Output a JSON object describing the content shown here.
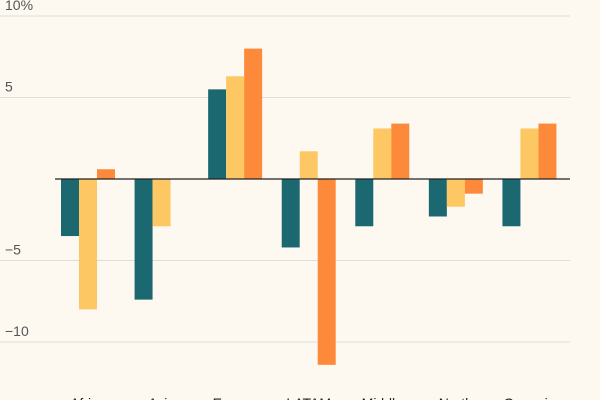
{
  "chart_data": {
    "type": "bar",
    "title": "",
    "xlabel": "",
    "ylabel": "",
    "categories": [
      "Africa",
      "Asia",
      "Europe",
      "LATAM",
      "Middle",
      "North",
      "Oceania"
    ],
    "series": [
      {
        "values": [
          -3.5,
          -7.4,
          5.5,
          -4.2,
          -2.9,
          -2.3,
          -2.9
        ],
        "color": "#1b6870"
      },
      {
        "values": [
          -8.0,
          -2.9,
          6.3,
          1.7,
          3.1,
          -1.7,
          3.1
        ],
        "color": "#fdc763"
      },
      {
        "values": [
          0.6,
          null,
          8.0,
          -11.4,
          3.4,
          -0.9,
          3.4
        ],
        "color": "#fc8a3a"
      }
    ],
    "ylim": [
      -11.4,
      10
    ],
    "yticks": [
      10,
      5,
      0,
      -5,
      -10
    ],
    "ytick_labels": [
      "10%",
      "5",
      "",
      "−5",
      "−10"
    ],
    "grid": true,
    "legend": "none"
  }
}
